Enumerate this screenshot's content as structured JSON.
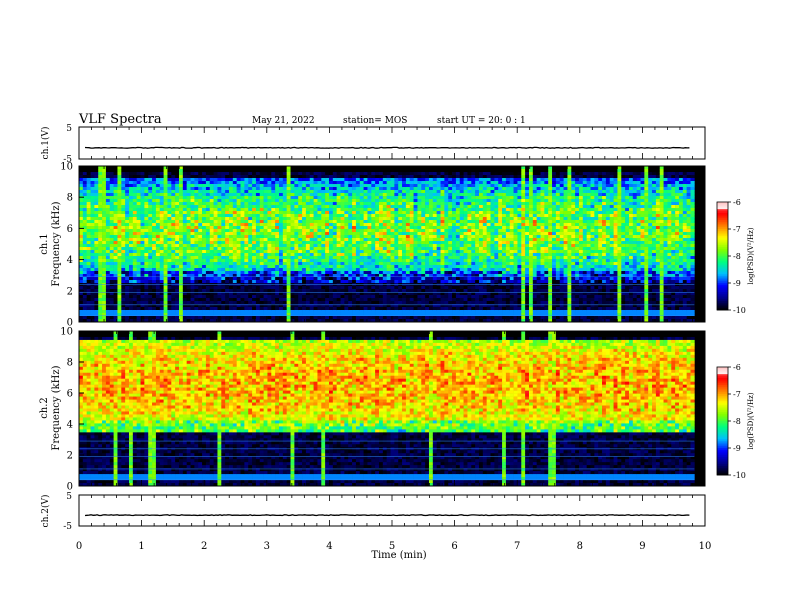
{
  "header": {
    "title": "VLF Spectra",
    "date": "May 21, 2022",
    "station": "station= MOS",
    "start": "start  UT =   20: 0  : 1"
  },
  "chart_data": [
    {
      "type": "line",
      "panel": "ch1-waveform",
      "ylabel": "ch.1(V)",
      "ylim": [
        -5,
        5
      ],
      "yticks": [
        "5",
        "-5"
      ],
      "series": [
        {
          "values_description_free": true,
          "baseline": -1.5
        }
      ],
      "xlim": [
        0,
        10
      ]
    },
    {
      "type": "heatmap",
      "panel": "ch1-spectrogram",
      "ylabel": "ch.1\nFrequency (kHz)",
      "ylim": [
        0,
        10
      ],
      "yticks": [
        "0",
        "2",
        "4",
        "6",
        "8",
        "10"
      ],
      "xlim": [
        0,
        10
      ],
      "colorbar": {
        "label": "log(PSD)(V²/Hz)",
        "range": [
          -10,
          -6
        ],
        "ticks": [
          "-6",
          "-7",
          "-8",
          "-9",
          "-10"
        ]
      },
      "band_khz": [
        2.5,
        9.3
      ],
      "band_level": -8.6,
      "background_level": -9.6,
      "peak_level": -6.6
    },
    {
      "type": "heatmap",
      "panel": "ch2-spectrogram",
      "ylabel": "ch.2\nFrequency (kHz)",
      "ylim": [
        0,
        10
      ],
      "yticks": [
        "0",
        "2",
        "4",
        "6",
        "8",
        "10"
      ],
      "xlim": [
        0,
        10
      ],
      "colorbar": {
        "label": "log(PSD)(V²/Hz)",
        "range": [
          -10,
          -6
        ],
        "ticks": [
          "-6",
          "-7",
          "-8",
          "-9",
          "-10"
        ]
      },
      "band_khz": [
        3.5,
        9.5
      ],
      "band_level": -7.2,
      "background_level": -9.6,
      "peak_level": -6.3
    },
    {
      "type": "line",
      "panel": "ch2-waveform",
      "ylabel": "ch.2(V)",
      "ylim": [
        -5,
        5
      ],
      "yticks": [
        "5",
        "-5"
      ],
      "series": [
        {
          "baseline": -1.5
        }
      ],
      "xlim": [
        0,
        10
      ],
      "xlabel": "Time  (min)",
      "xticks": [
        "0",
        "1",
        "2",
        "3",
        "4",
        "5",
        "6",
        "7",
        "8",
        "9",
        "10"
      ]
    }
  ],
  "colors": {
    "colormap": [
      "#000000",
      "#00008b",
      "#0000ff",
      "#00bfff",
      "#00ff80",
      "#80ff00",
      "#ffff00",
      "#ff8000",
      "#ff0000",
      "#ff8080",
      "#ffffff"
    ]
  }
}
